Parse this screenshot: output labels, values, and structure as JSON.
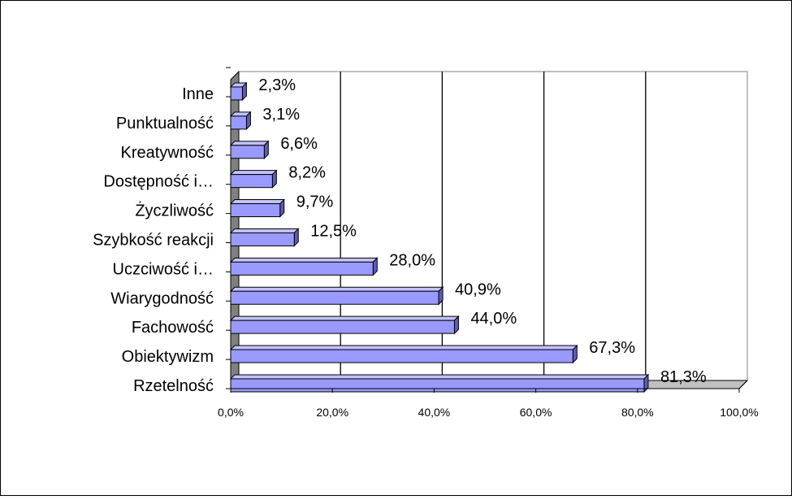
{
  "chart_data": {
    "type": "bar",
    "orientation": "horizontal",
    "style": "3d",
    "categories": [
      "Rzetelność",
      "Obiektywizm",
      "Fachowość",
      "Wiarygodność",
      "Uczciwość i…",
      "Szybkość reakcji",
      "Życzliwość",
      "Dostępność i…",
      "Kreatywność",
      "Punktualność",
      "Inne"
    ],
    "values": [
      81.3,
      67.3,
      44.0,
      40.9,
      28.0,
      12.5,
      9.7,
      8.2,
      6.6,
      3.1,
      2.3
    ],
    "value_labels": [
      "81,3%",
      "67,3%",
      "44,0%",
      "40,9%",
      "28,0%",
      "12,5%",
      "9,7%",
      "8,2%",
      "6,6%",
      "3,1%",
      "2,3%"
    ],
    "x_ticks": [
      "0,0%",
      "20,0%",
      "40,0%",
      "60,0%",
      "80,0%",
      "100,0%"
    ],
    "xlim": [
      0,
      100
    ],
    "title": "",
    "xlabel": "",
    "ylabel": "",
    "grid": "vertical",
    "legend": "none",
    "colors": {
      "bar_front": "#9999ff",
      "bar_top": "#c2c2ff",
      "bar_side": "#5c5cb8",
      "bar_stroke": "#000000",
      "wall": "#808080",
      "floor": "#c0c0c0",
      "gridline": "#000000"
    }
  }
}
